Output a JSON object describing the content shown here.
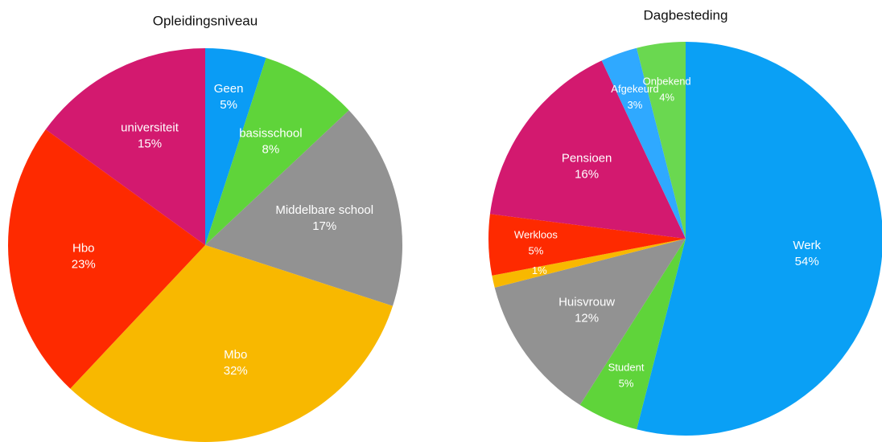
{
  "chart_data": [
    {
      "type": "pie",
      "title": "Opleidingsniveau",
      "categories": [
        "Geen",
        "basisschool",
        "Middelbare school",
        "Mbo",
        "Hbo",
        "universiteit"
      ],
      "values": [
        5,
        8,
        17,
        32,
        23,
        15
      ],
      "value_labels": [
        "5%",
        "8%",
        "17%",
        "32%",
        "23%",
        "15%"
      ],
      "colors": [
        "#0a9cf5",
        "#5fd43a",
        "#929292",
        "#f8b800",
        "#fe2a00",
        "#d3196f"
      ]
    },
    {
      "type": "pie",
      "title": "Dagbesteding",
      "categories": [
        "Werk",
        "Student",
        "Huisvrouw",
        null,
        "Werkloos",
        "Pensioen",
        "Afgekeurd",
        "Onbekend"
      ],
      "values": [
        54,
        5,
        12,
        1,
        5,
        16,
        3,
        4
      ],
      "value_labels": [
        "54%",
        "5%",
        "12%",
        "1%",
        "5%",
        "16%",
        "3%",
        "4%"
      ],
      "colors": [
        "#0aa0f5",
        "#5fd43a",
        "#929292",
        "#f8b800",
        "#fe2a00",
        "#d3196f",
        "#2fa9ff",
        "#6ad850"
      ]
    }
  ]
}
